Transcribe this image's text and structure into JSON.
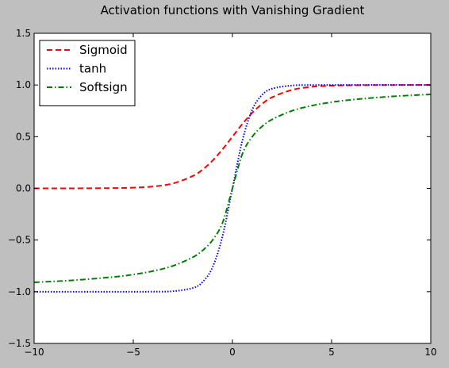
{
  "chart_data": {
    "type": "line",
    "title": "Activation functions with Vanishing Gradient",
    "xlabel": "",
    "ylabel": "",
    "xlim": [
      -10,
      10
    ],
    "ylim": [
      -1.5,
      1.5
    ],
    "x_ticks": [
      -10,
      -5,
      0,
      5,
      10
    ],
    "x_tick_labels": [
      "−10",
      "−5",
      "0",
      "5",
      "10"
    ],
    "y_ticks": [
      -1.5,
      -1.0,
      -0.5,
      0.0,
      0.5,
      1.0,
      1.5
    ],
    "y_tick_labels": [
      "−1.5",
      "−1.0",
      "−0.5",
      "0.0",
      "0.5",
      "1.0",
      "1.5"
    ],
    "grid": false,
    "legend_position": "top-left",
    "x": [
      -10,
      -8,
      -6,
      -5,
      -4,
      -3,
      -2,
      -1.5,
      -1,
      -0.5,
      0,
      0.5,
      1,
      1.5,
      2,
      3,
      4,
      5,
      6,
      8,
      10
    ],
    "series": [
      {
        "name": "Sigmoid",
        "color": "#ff0000",
        "style": "dashed",
        "values": [
          0.0,
          0.0003,
          0.0025,
          0.0067,
          0.018,
          0.0474,
          0.1192,
          0.1824,
          0.2689,
          0.3775,
          0.5,
          0.6225,
          0.7311,
          0.8176,
          0.8808,
          0.9526,
          0.982,
          0.9933,
          0.9975,
          0.9997,
          1.0
        ]
      },
      {
        "name": "tanh",
        "color": "#0000ff",
        "style": "dotted",
        "values": [
          -1.0,
          -1.0,
          -1.0,
          -0.9999,
          -0.9993,
          -0.9951,
          -0.964,
          -0.9051,
          -0.7616,
          -0.4621,
          0.0,
          0.4621,
          0.7616,
          0.9051,
          0.964,
          0.9951,
          0.9993,
          0.9999,
          1.0,
          1.0,
          1.0
        ]
      },
      {
        "name": "Softsign",
        "color": "#008000",
        "style": "dashdot",
        "values": [
          -0.9091,
          -0.8889,
          -0.8571,
          -0.8333,
          -0.8,
          -0.75,
          -0.6667,
          -0.6,
          -0.5,
          -0.3333,
          0.0,
          0.3333,
          0.5,
          0.6,
          0.6667,
          0.75,
          0.8,
          0.8333,
          0.8571,
          0.8889,
          0.9091
        ]
      }
    ]
  }
}
